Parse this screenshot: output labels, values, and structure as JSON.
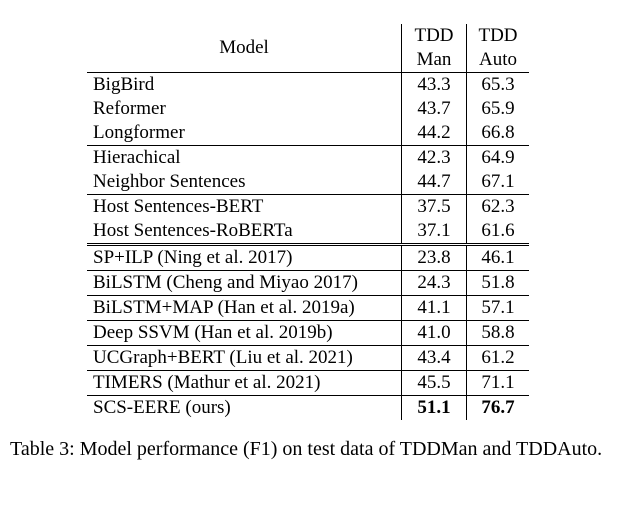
{
  "table": {
    "header": {
      "model": "Model",
      "col1_line1": "TDD",
      "col1_line2": "Man",
      "col2_line1": "TDD",
      "col2_line2": "Auto"
    },
    "rows": [
      {
        "model": "BigBird",
        "man": "43.3",
        "auto": "65.3"
      },
      {
        "model": "Reformer",
        "man": "43.7",
        "auto": "65.9"
      },
      {
        "model": "Longformer",
        "man": "44.2",
        "auto": "66.8"
      },
      {
        "model": "Hierachical",
        "man": "42.3",
        "auto": "64.9"
      },
      {
        "model": "Neighbor Sentences",
        "man": "44.7",
        "auto": "67.1"
      },
      {
        "model": "Host Sentences-BERT",
        "man": "37.5",
        "auto": "62.3"
      },
      {
        "model": "Host Sentences-RoBERTa",
        "man": "37.1",
        "auto": "61.6"
      },
      {
        "model": "SP+ILP (Ning et al. 2017)",
        "man": "23.8",
        "auto": "46.1"
      },
      {
        "model": "BiLSTM (Cheng and Miyao 2017)",
        "man": "24.3",
        "auto": "51.8"
      },
      {
        "model": "BiLSTM+MAP (Han et al. 2019a)",
        "man": "41.1",
        "auto": "57.1"
      },
      {
        "model": "Deep SSVM (Han et al. 2019b)",
        "man": "41.0",
        "auto": "58.8"
      },
      {
        "model": "UCGraph+BERT (Liu et al. 2021)",
        "man": "43.4",
        "auto": "61.2"
      },
      {
        "model": "TIMERS (Mathur et al. 2021)",
        "man": "45.5",
        "auto": "71.1"
      },
      {
        "model": "SCS-EERE (ours)",
        "man": "51.1",
        "auto": "76.7"
      }
    ]
  },
  "caption": "Table 3: Model performance (F1) on test data of TDDMan and TDDAuto."
}
